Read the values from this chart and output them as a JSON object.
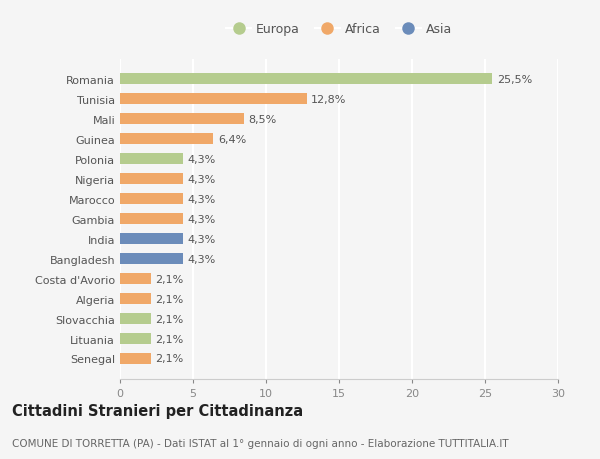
{
  "countries": [
    "Romania",
    "Tunisia",
    "Mali",
    "Guinea",
    "Polonia",
    "Nigeria",
    "Marocco",
    "Gambia",
    "India",
    "Bangladesh",
    "Costa d'Avorio",
    "Algeria",
    "Slovacchia",
    "Lituania",
    "Senegal"
  ],
  "values": [
    25.5,
    12.8,
    8.5,
    6.4,
    4.3,
    4.3,
    4.3,
    4.3,
    4.3,
    4.3,
    2.1,
    2.1,
    2.1,
    2.1,
    2.1
  ],
  "labels": [
    "25,5%",
    "12,8%",
    "8,5%",
    "6,4%",
    "4,3%",
    "4,3%",
    "4,3%",
    "4,3%",
    "4,3%",
    "4,3%",
    "2,1%",
    "2,1%",
    "2,1%",
    "2,1%",
    "2,1%"
  ],
  "continents": [
    "Europa",
    "Africa",
    "Africa",
    "Africa",
    "Europa",
    "Africa",
    "Africa",
    "Africa",
    "Asia",
    "Asia",
    "Africa",
    "Africa",
    "Europa",
    "Europa",
    "Africa"
  ],
  "colors": {
    "Europa": "#b5cc8e",
    "Africa": "#f0a868",
    "Asia": "#6b8cba"
  },
  "legend_order": [
    "Europa",
    "Africa",
    "Asia"
  ],
  "xlim": [
    0,
    30
  ],
  "xticks": [
    0,
    5,
    10,
    15,
    20,
    25,
    30
  ],
  "title": "Cittadini Stranieri per Cittadinanza",
  "subtitle": "COMUNE DI TORRETTA (PA) - Dati ISTAT al 1° gennaio di ogni anno - Elaborazione TUTTITALIA.IT",
  "bg_color": "#f5f5f5",
  "grid_color": "#ffffff",
  "bar_height": 0.55,
  "label_fontsize": 8,
  "tick_fontsize": 8,
  "title_fontsize": 10.5,
  "subtitle_fontsize": 7.5,
  "legend_fontsize": 9
}
